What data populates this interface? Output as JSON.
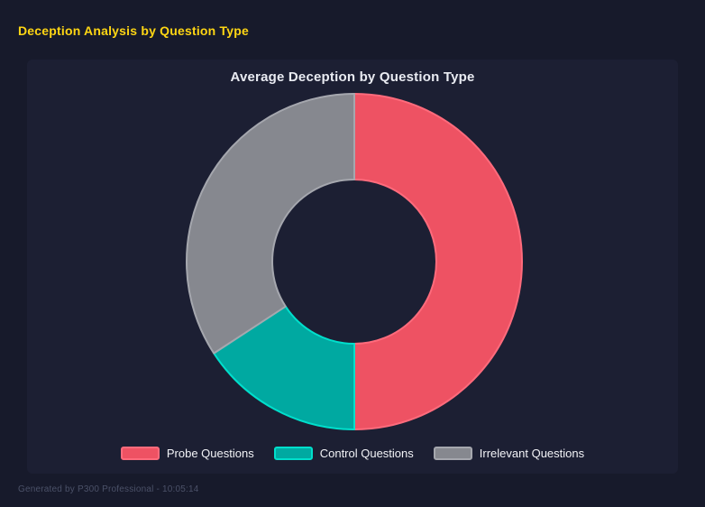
{
  "header": {
    "title": "Deception Analysis by Question Type"
  },
  "chart_data": {
    "type": "pie",
    "subtype": "doughnut",
    "title": "Average Deception by Question Type",
    "start_angle_deg_from_top": 0,
    "direction": "clockwise",
    "inner_radius_ratio": 0.49,
    "legend_position": "bottom",
    "categories": [
      "Probe Questions",
      "Control Questions",
      "Irrelevant Questions"
    ],
    "values": [
      50,
      15.8,
      34.2
    ],
    "segments": [
      {
        "label": "Probe Questions",
        "value_pct": 50,
        "color": "#ee5263",
        "border_color": "#ff6b7c"
      },
      {
        "label": "Control Questions",
        "value_pct": 15.8,
        "color": "#00a9a1",
        "border_color": "#00dfcc"
      },
      {
        "label": "Irrelevant Questions",
        "value_pct": 34.2,
        "color": "#86888f",
        "border_color": "#a5a7ae"
      }
    ]
  },
  "footer": {
    "caption": "Generated by P300 Professional - 10:05:14"
  },
  "colors": {
    "page_bg": "#171a2b",
    "panel_bg": "#1c1f33",
    "header_text": "#ffd613",
    "chart_title_text": "#e9ebf2",
    "legend_text": "#f2f3f7",
    "footer_text": "#4b5168"
  }
}
